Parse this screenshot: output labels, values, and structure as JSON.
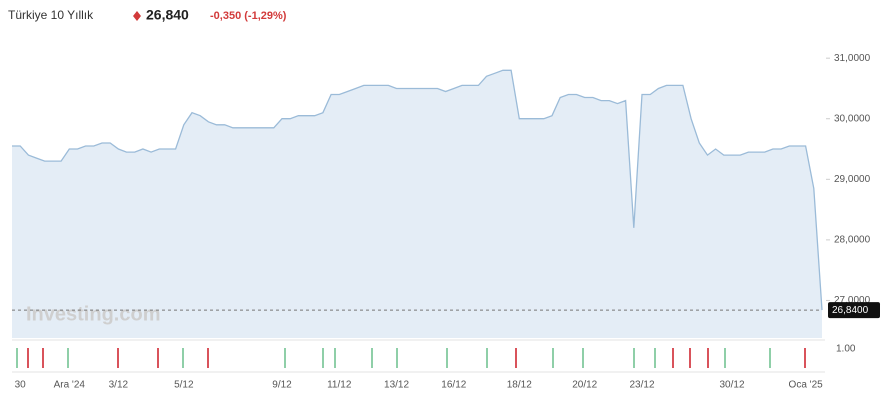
{
  "chart_data": {
    "type": "area",
    "title": "Türkiye 10 Yıllık",
    "price": "26,840",
    "change": "-0,350 (-1,29%)",
    "watermark": "Investing.com",
    "lower_axis_label": "1.00",
    "last_value_label": "26,8400",
    "color": "#9bbbd8",
    "fill": "#e4edf6",
    "categories": [
      null,
      "30",
      null,
      null,
      null,
      null,
      null,
      "Ara '24",
      null,
      null,
      null,
      null,
      null,
      "3/12",
      null,
      null,
      null,
      null,
      null,
      null,
      null,
      "5/12",
      null,
      null,
      null,
      null,
      null,
      null,
      null,
      null,
      null,
      null,
      null,
      "9/12",
      null,
      null,
      null,
      null,
      null,
      null,
      "11/12",
      null,
      null,
      null,
      null,
      null,
      null,
      "13/12",
      null,
      null,
      null,
      null,
      null,
      null,
      "16/12",
      null,
      null,
      null,
      null,
      null,
      null,
      null,
      "18/12",
      null,
      null,
      null,
      null,
      null,
      null,
      null,
      "20/12",
      null,
      null,
      null,
      null,
      null,
      null,
      "23/12",
      null,
      null,
      null,
      null,
      null,
      null,
      null,
      null,
      null,
      null,
      "30/12",
      null,
      null,
      null,
      null,
      null,
      null,
      null,
      null,
      "Oca '25",
      null,
      null
    ],
    "values": [
      29.55,
      29.55,
      29.4,
      29.35,
      29.3,
      29.3,
      29.3,
      29.5,
      29.5,
      29.55,
      29.55,
      29.6,
      29.6,
      29.5,
      29.45,
      29.45,
      29.5,
      29.45,
      29.5,
      29.5,
      29.5,
      29.9,
      30.1,
      30.05,
      29.95,
      29.9,
      29.9,
      29.85,
      29.85,
      29.85,
      29.85,
      29.85,
      29.85,
      30.0,
      30.0,
      30.05,
      30.05,
      30.05,
      30.1,
      30.4,
      30.4,
      30.45,
      30.5,
      30.55,
      30.55,
      30.55,
      30.55,
      30.5,
      30.5,
      30.5,
      30.5,
      30.5,
      30.5,
      30.45,
      30.5,
      30.55,
      30.55,
      30.55,
      30.7,
      30.75,
      30.8,
      30.8,
      30.0,
      30.0,
      30.0,
      30.0,
      30.05,
      30.35,
      30.4,
      30.4,
      30.35,
      30.35,
      30.3,
      30.3,
      30.25,
      30.3,
      28.2,
      30.4,
      30.4,
      30.5,
      30.55,
      30.55,
      30.55,
      30.0,
      29.6,
      29.4,
      29.5,
      29.4,
      29.4,
      29.4,
      29.45,
      29.45,
      29.45,
      29.5,
      29.5,
      29.55,
      29.55,
      29.55,
      28.85,
      26.84
    ],
    "ylim": [
      26.38,
      31.3
    ],
    "yticks": [
      {
        "value": 31,
        "label": "31,0000"
      },
      {
        "value": 30,
        "label": "30,0000"
      },
      {
        "value": 29,
        "label": "29,0000"
      },
      {
        "value": 28,
        "label": "28,0000"
      },
      {
        "value": 27,
        "label": "27,0000"
      }
    ]
  }
}
